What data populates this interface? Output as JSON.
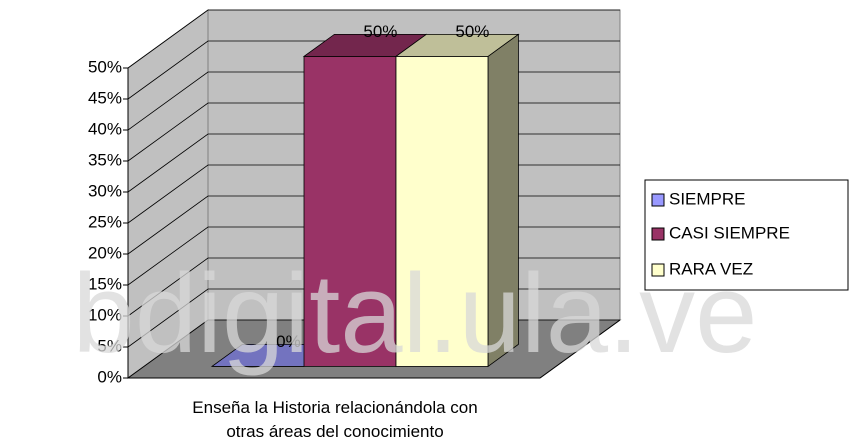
{
  "chart_data": {
    "type": "bar3d",
    "categories": [
      "Enseña la Historia relacionándola con otras áreas del conocimiento"
    ],
    "series": [
      {
        "name": "SIEMPRE",
        "color": "#9999ff",
        "values": [
          0
        ],
        "value_labels": [
          "0%"
        ]
      },
      {
        "name": "CASI SIEMPRE",
        "color": "#993366",
        "values": [
          50
        ],
        "value_labels": [
          "50%"
        ]
      },
      {
        "name": "RARA VEZ",
        "color": "#ffffcc",
        "values": [
          50
        ],
        "value_labels": [
          "50%"
        ]
      }
    ],
    "ylim": [
      0,
      50
    ],
    "yticks": [
      {
        "value": 0,
        "label": "0%"
      },
      {
        "value": 5,
        "label": "5%"
      },
      {
        "value": 10,
        "label": "10%"
      },
      {
        "value": 15,
        "label": "15%"
      },
      {
        "value": 20,
        "label": "20%"
      },
      {
        "value": 25,
        "label": "25%"
      },
      {
        "value": 30,
        "label": "30%"
      },
      {
        "value": 35,
        "label": "35%"
      },
      {
        "value": 40,
        "label": "40%"
      },
      {
        "value": 45,
        "label": "45%"
      },
      {
        "value": 50,
        "label": "50%"
      }
    ],
    "grid": true,
    "legend": "right",
    "watermark": "bdigital.ula.ve"
  }
}
